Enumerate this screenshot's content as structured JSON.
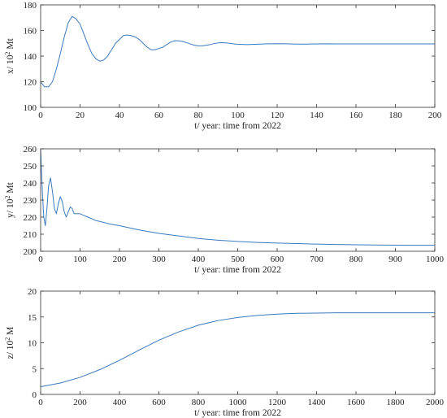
{
  "chart_data": [
    {
      "type": "line",
      "xlabel": "t/ year: time from 2022",
      "ylabel_main": "x/ 10",
      "ylabel_exp": "2",
      "ylabel_unit": " Mt",
      "xlim": [
        0,
        200
      ],
      "ylim": [
        100,
        180
      ],
      "xticks": [
        0,
        20,
        40,
        60,
        80,
        100,
        120,
        140,
        160,
        180,
        200
      ],
      "yticks": [
        100,
        120,
        140,
        160,
        180
      ],
      "grid": false,
      "color": "#3a7bbf",
      "series": [
        {
          "x": [
            0,
            2,
            4,
            6,
            8,
            10,
            12,
            14,
            16,
            18,
            20,
            22,
            24,
            26,
            28,
            30,
            32,
            34,
            36,
            38,
            40,
            42,
            44,
            46,
            48,
            50,
            52,
            54,
            56,
            58,
            60,
            62,
            64,
            66,
            68,
            70,
            72,
            74,
            76,
            78,
            80,
            82,
            84,
            86,
            88,
            90,
            92,
            94,
            96,
            98,
            100,
            105,
            110,
            115,
            120,
            125,
            130,
            135,
            140,
            145,
            150,
            160,
            170,
            180,
            190,
            200
          ],
          "y": [
            120,
            116,
            116,
            120,
            130,
            142,
            155,
            166,
            171,
            169,
            165,
            157,
            149,
            142,
            138,
            136,
            137,
            140,
            145,
            150,
            153,
            156,
            156.5,
            156,
            155,
            153,
            150,
            147,
            145,
            145,
            146,
            147,
            149,
            151,
            152,
            152,
            151.5,
            150.5,
            149.5,
            148.5,
            148,
            148,
            148.5,
            149,
            149.8,
            150.3,
            150.5,
            150.3,
            150,
            149.5,
            149.2,
            149,
            149.3,
            149.6,
            149.7,
            149.6,
            149.4,
            149.4,
            149.5,
            149.6,
            149.5,
            149.5,
            149.5,
            149.5,
            149.5,
            149.5
          ]
        }
      ]
    },
    {
      "type": "line",
      "xlabel": "t/ year: time from 2022",
      "ylabel_main": "y/ 10",
      "ylabel_exp": "2",
      "ylabel_unit": " Mt",
      "xlim": [
        0,
        1000
      ],
      "ylim": [
        200,
        260
      ],
      "xticks": [
        0,
        100,
        200,
        300,
        400,
        500,
        600,
        700,
        800,
        900,
        1000
      ],
      "yticks": [
        200,
        210,
        220,
        230,
        240,
        250,
        260
      ],
      "grid": false,
      "color": "#3a7bbf",
      "series": [
        {
          "x": [
            0,
            2,
            5,
            8,
            12,
            16,
            20,
            25,
            30,
            35,
            40,
            45,
            50,
            55,
            60,
            65,
            70,
            75,
            80,
            85,
            90,
            95,
            100,
            110,
            120,
            130,
            140,
            150,
            175,
            200,
            250,
            300,
            350,
            400,
            450,
            500,
            550,
            600,
            650,
            700,
            750,
            800,
            850,
            900,
            950,
            1000
          ],
          "y": [
            259,
            248,
            232,
            220,
            215,
            225,
            238,
            243,
            235,
            225,
            222,
            228,
            232,
            229,
            223,
            220,
            223,
            226,
            225,
            222,
            222,
            222,
            222,
            221,
            220,
            219,
            218,
            217.5,
            216,
            215,
            212.5,
            210.5,
            209,
            207.5,
            206.5,
            205.8,
            205.2,
            204.8,
            204.5,
            204.2,
            204,
            203.8,
            203.7,
            203.6,
            203.5,
            203.5
          ]
        }
      ]
    },
    {
      "type": "line",
      "xlabel": "t/ year: time from 2022",
      "ylabel_main": "z/ 10",
      "ylabel_exp": "2",
      "ylabel_unit": " M",
      "xlim": [
        0,
        2000
      ],
      "ylim": [
        0,
        20
      ],
      "xticks": [
        0,
        200,
        400,
        600,
        800,
        1000,
        1200,
        1400,
        1600,
        1800,
        2000
      ],
      "yticks": [
        0,
        5,
        10,
        15,
        20
      ],
      "grid": false,
      "color": "#3a7bbf",
      "series": [
        {
          "x": [
            0,
            100,
            200,
            300,
            400,
            500,
            600,
            700,
            800,
            900,
            1000,
            1100,
            1200,
            1300,
            1400,
            1500,
            1600,
            1700,
            1800,
            1900,
            2000
          ],
          "y": [
            1.5,
            2.2,
            3.3,
            4.8,
            6.6,
            8.6,
            10.5,
            12.1,
            13.4,
            14.3,
            14.9,
            15.3,
            15.55,
            15.7,
            15.75,
            15.8,
            15.8,
            15.8,
            15.8,
            15.8,
            15.8
          ]
        }
      ]
    }
  ]
}
